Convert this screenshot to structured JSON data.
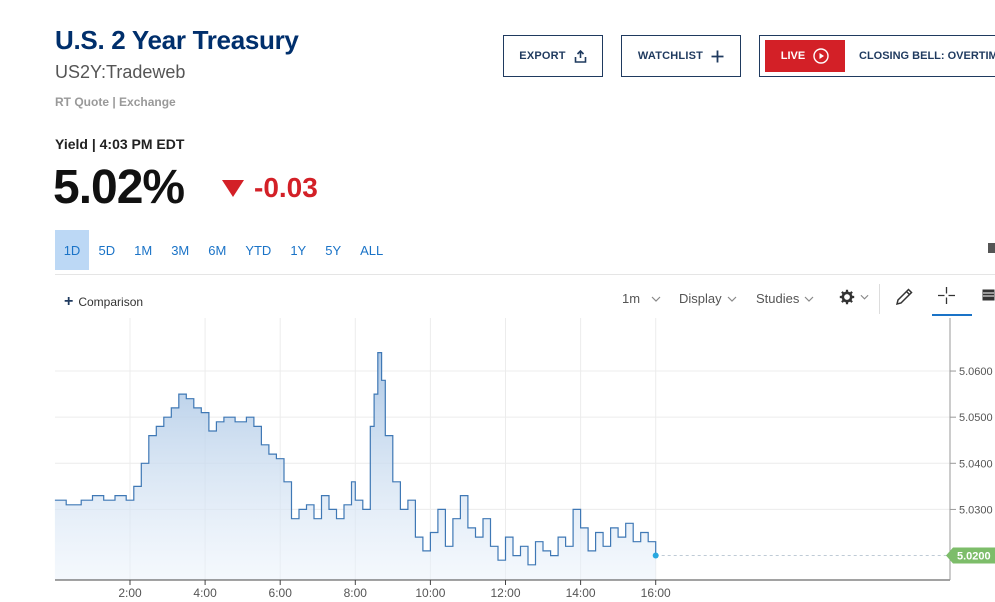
{
  "header": {
    "title": "U.S. 2 Year Treasury",
    "symbol": "US2Y:Tradeweb",
    "quote_source": "RT Quote | Exchange"
  },
  "actions": {
    "export_label": "EXPORT",
    "watchlist_label": "WATCHLIST",
    "live_label": "LIVE",
    "live_show": "CLOSING BELL: OVERTIM"
  },
  "quote": {
    "label": "Yield | 4:03 PM EDT",
    "price": "5.02%",
    "change": "-0.03",
    "change_color": "#d32027"
  },
  "ranges": [
    "1D",
    "5D",
    "1M",
    "3M",
    "6M",
    "YTD",
    "1Y",
    "5Y",
    "ALL"
  ],
  "active_range": "1D",
  "toolbar": {
    "comparison": "Comparison",
    "interval": "1m",
    "display": "Display",
    "studies": "Studies",
    "icons": [
      "gear-icon",
      "pencil-icon",
      "crosshair-icon",
      "table-icon"
    ]
  },
  "chart_data": {
    "type": "area",
    "x_unit": "hour",
    "xlim": [
      0,
      24
    ],
    "ylim": [
      5.0147,
      5.0715
    ],
    "x_ticks": [
      {
        "x": 2,
        "label": "2:00"
      },
      {
        "x": 4,
        "label": "4:00"
      },
      {
        "x": 6,
        "label": "6:00"
      },
      {
        "x": 8,
        "label": "8:00"
      },
      {
        "x": 10,
        "label": "10:00"
      },
      {
        "x": 12,
        "label": "12:00"
      },
      {
        "x": 14,
        "label": "14:00"
      },
      {
        "x": 16,
        "label": "16:00"
      }
    ],
    "y_ticks": [
      {
        "y": 5.06,
        "label": "5.0600"
      },
      {
        "y": 5.05,
        "label": "5.0500"
      },
      {
        "y": 5.04,
        "label": "5.0400"
      },
      {
        "y": 5.03,
        "label": "5.0300"
      }
    ],
    "last_value": 5.02,
    "last_label": "5.0200",
    "line_color": "#3f78b5",
    "points": [
      [
        0.0,
        5.032
      ],
      [
        0.3,
        5.031
      ],
      [
        0.7,
        5.032
      ],
      [
        1.0,
        5.033
      ],
      [
        1.3,
        5.032
      ],
      [
        1.6,
        5.033
      ],
      [
        1.9,
        5.032
      ],
      [
        2.1,
        5.035
      ],
      [
        2.3,
        5.04
      ],
      [
        2.5,
        5.046
      ],
      [
        2.7,
        5.048
      ],
      [
        2.9,
        5.05
      ],
      [
        3.1,
        5.052
      ],
      [
        3.3,
        5.055
      ],
      [
        3.5,
        5.054
      ],
      [
        3.7,
        5.052
      ],
      [
        3.9,
        5.051
      ],
      [
        4.1,
        5.047
      ],
      [
        4.3,
        5.049
      ],
      [
        4.5,
        5.05
      ],
      [
        4.8,
        5.049
      ],
      [
        5.1,
        5.05
      ],
      [
        5.3,
        5.048
      ],
      [
        5.5,
        5.044
      ],
      [
        5.7,
        5.042
      ],
      [
        5.9,
        5.041
      ],
      [
        6.1,
        5.036
      ],
      [
        6.3,
        5.028
      ],
      [
        6.5,
        5.03
      ],
      [
        6.7,
        5.031
      ],
      [
        6.9,
        5.028
      ],
      [
        7.1,
        5.033
      ],
      [
        7.3,
        5.03
      ],
      [
        7.5,
        5.028
      ],
      [
        7.7,
        5.031
      ],
      [
        7.9,
        5.036
      ],
      [
        8.0,
        5.032
      ],
      [
        8.2,
        5.03
      ],
      [
        8.4,
        5.048
      ],
      [
        8.5,
        5.055
      ],
      [
        8.6,
        5.064
      ],
      [
        8.7,
        5.058
      ],
      [
        8.8,
        5.046
      ],
      [
        9.0,
        5.036
      ],
      [
        9.2,
        5.03
      ],
      [
        9.4,
        5.032
      ],
      [
        9.6,
        5.024
      ],
      [
        9.8,
        5.021
      ],
      [
        10.0,
        5.025
      ],
      [
        10.2,
        5.03
      ],
      [
        10.4,
        5.022
      ],
      [
        10.6,
        5.028
      ],
      [
        10.8,
        5.033
      ],
      [
        11.0,
        5.026
      ],
      [
        11.2,
        5.024
      ],
      [
        11.4,
        5.028
      ],
      [
        11.6,
        5.022
      ],
      [
        11.8,
        5.019
      ],
      [
        12.0,
        5.024
      ],
      [
        12.2,
        5.02
      ],
      [
        12.4,
        5.022
      ],
      [
        12.6,
        5.018
      ],
      [
        12.8,
        5.023
      ],
      [
        13.0,
        5.021
      ],
      [
        13.2,
        5.02
      ],
      [
        13.4,
        5.024
      ],
      [
        13.6,
        5.022
      ],
      [
        13.8,
        5.03
      ],
      [
        14.0,
        5.026
      ],
      [
        14.2,
        5.021
      ],
      [
        14.4,
        5.025
      ],
      [
        14.6,
        5.022
      ],
      [
        14.8,
        5.026
      ],
      [
        15.0,
        5.024
      ],
      [
        15.2,
        5.027
      ],
      [
        15.4,
        5.023
      ],
      [
        15.6,
        5.025
      ],
      [
        15.8,
        5.023
      ],
      [
        16.0,
        5.02
      ]
    ]
  }
}
